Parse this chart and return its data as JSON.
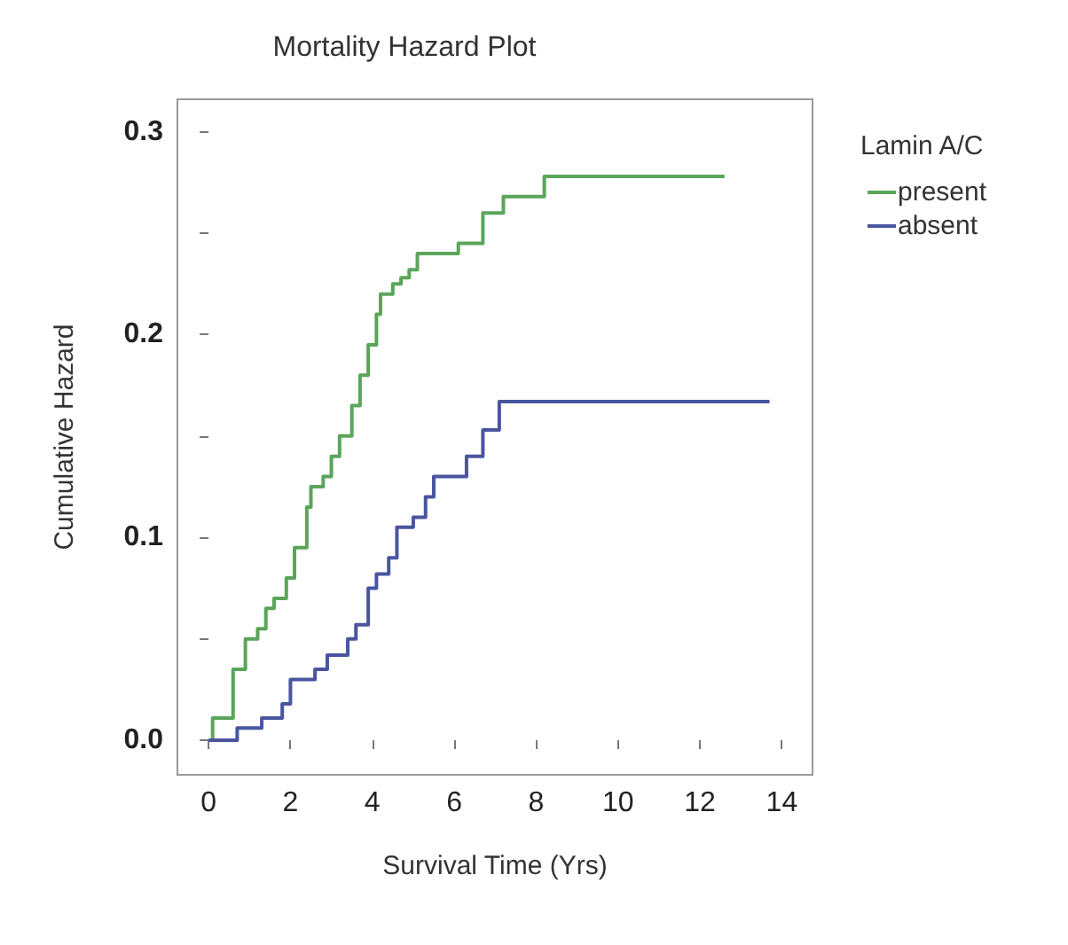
{
  "chart_data": {
    "type": "step",
    "title": "Mortality Hazard Plot",
    "xlabel": "Survival Time (Yrs)",
    "ylabel": "Cumulative Hazard",
    "legend_title": "Lamin A/C",
    "legend": "top right",
    "grid": false,
    "marker": "none",
    "line_style": "solid",
    "xlim": [
      -0.76,
      14.75
    ],
    "xticks": [
      0,
      2,
      4,
      6,
      8,
      10,
      12,
      14
    ],
    "ylim": [
      -0.017,
      0.316
    ],
    "yticks": [
      {
        "value": 0,
        "label": "0.0"
      },
      {
        "value": 0.05,
        "label": null
      },
      {
        "value": 0.1,
        "label": "0.1"
      },
      {
        "value": 0.15,
        "label": null
      },
      {
        "value": 0.2,
        "label": "0.2"
      },
      {
        "value": 0.25,
        "label": null
      },
      {
        "value": 0.3,
        "label": "0.3"
      }
    ],
    "series": [
      {
        "name": "present",
        "color": "#5aa55a",
        "x": [
          0,
          0.1,
          0.4,
          0.6,
          0.9,
          1.2,
          1.4,
          1.6,
          1.9,
          2.1,
          2.4,
          2.5,
          2.8,
          3.0,
          3.2,
          3.5,
          3.7,
          3.9,
          4.1,
          4.2,
          4.5,
          4.7,
          4.9,
          5.1,
          6.1,
          6.7,
          7.2,
          8.2,
          12.6
        ],
        "values": [
          0,
          0.011,
          0.011,
          0.035,
          0.05,
          0.055,
          0.065,
          0.07,
          0.08,
          0.095,
          0.115,
          0.125,
          0.13,
          0.14,
          0.15,
          0.165,
          0.18,
          0.195,
          0.21,
          0.22,
          0.225,
          0.228,
          0.232,
          0.24,
          0.245,
          0.26,
          0.268,
          0.278,
          0.278
        ]
      },
      {
        "name": "absent",
        "color": "#4a55a0",
        "x": [
          0,
          0.7,
          1.3,
          1.8,
          2.0,
          2.6,
          2.9,
          3.4,
          3.6,
          3.9,
          4.1,
          4.4,
          4.6,
          5.0,
          5.3,
          5.5,
          6.3,
          6.7,
          7.1,
          13.7
        ],
        "values": [
          0,
          0.006,
          0.011,
          0.018,
          0.03,
          0.035,
          0.042,
          0.05,
          0.057,
          0.075,
          0.082,
          0.09,
          0.105,
          0.11,
          0.12,
          0.13,
          0.14,
          0.153,
          0.167,
          0.167
        ]
      }
    ]
  }
}
